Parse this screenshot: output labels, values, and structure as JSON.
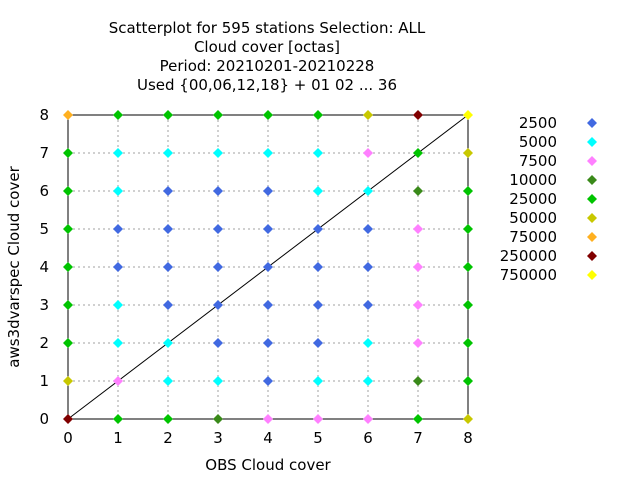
{
  "chart_data": {
    "type": "scatter",
    "title_lines": [
      "Scatterplot for  595 stations Selection: ALL",
      "Cloud cover [octas]",
      "Period: 20210201-20210228",
      "Used {00,06,12,18} + 01 02 ... 36"
    ],
    "xlabel": "OBS Cloud cover",
    "ylabel": "aws3dvarspec Cloud cover",
    "xlim": [
      0,
      8
    ],
    "ylim": [
      0,
      8
    ],
    "xticks": [
      "0",
      "1",
      "2",
      "3",
      "4",
      "5",
      "6",
      "7",
      "8"
    ],
    "yticks": [
      "0",
      "1",
      "2",
      "3",
      "4",
      "5",
      "6",
      "7",
      "8"
    ],
    "grid": true,
    "diagonal_line": true,
    "legend_placement": "right",
    "legend": [
      {
        "label": "2500",
        "color": "#4169e1"
      },
      {
        "label": "5000",
        "color": "#00ffff"
      },
      {
        "label": "7500",
        "color": "#ff80ff"
      },
      {
        "label": "10000",
        "color": "#3a8a1a"
      },
      {
        "label": "25000",
        "color": "#00c400"
      },
      {
        "label": "50000",
        "color": "#c8c800"
      },
      {
        "label": "75000",
        "color": "#ffb020"
      },
      {
        "label": "250000",
        "color": "#800000"
      },
      {
        "label": "750000",
        "color": "#ffff00"
      }
    ],
    "points": [
      [
        0,
        8,
        6
      ],
      [
        1,
        8,
        4
      ],
      [
        2,
        8,
        4
      ],
      [
        3,
        8,
        4
      ],
      [
        4,
        8,
        4
      ],
      [
        5,
        8,
        4
      ],
      [
        6,
        8,
        5
      ],
      [
        7,
        8,
        7
      ],
      [
        8,
        8,
        8
      ],
      [
        0,
        7,
        4
      ],
      [
        1,
        7,
        1
      ],
      [
        2,
        7,
        1
      ],
      [
        3,
        7,
        1
      ],
      [
        4,
        7,
        1
      ],
      [
        5,
        7,
        1
      ],
      [
        6,
        7,
        2
      ],
      [
        7,
        7,
        4
      ],
      [
        8,
        7,
        5
      ],
      [
        0,
        6,
        4
      ],
      [
        1,
        6,
        1
      ],
      [
        2,
        6,
        0
      ],
      [
        3,
        6,
        0
      ],
      [
        4,
        6,
        0
      ],
      [
        5,
        6,
        1
      ],
      [
        6,
        6,
        1
      ],
      [
        7,
        6,
        3
      ],
      [
        8,
        6,
        4
      ],
      [
        0,
        5,
        4
      ],
      [
        1,
        5,
        0
      ],
      [
        2,
        5,
        0
      ],
      [
        3,
        5,
        0
      ],
      [
        4,
        5,
        0
      ],
      [
        5,
        5,
        0
      ],
      [
        6,
        5,
        0
      ],
      [
        7,
        5,
        2
      ],
      [
        8,
        5,
        4
      ],
      [
        0,
        4,
        4
      ],
      [
        1,
        4,
        0
      ],
      [
        2,
        4,
        0
      ],
      [
        3,
        4,
        0
      ],
      [
        4,
        4,
        0
      ],
      [
        5,
        4,
        0
      ],
      [
        6,
        4,
        0
      ],
      [
        7,
        4,
        2
      ],
      [
        8,
        4,
        4
      ],
      [
        0,
        3,
        4
      ],
      [
        1,
        3,
        1
      ],
      [
        2,
        3,
        0
      ],
      [
        3,
        3,
        0
      ],
      [
        4,
        3,
        0
      ],
      [
        5,
        3,
        0
      ],
      [
        6,
        3,
        0
      ],
      [
        7,
        3,
        2
      ],
      [
        8,
        3,
        4
      ],
      [
        0,
        2,
        4
      ],
      [
        1,
        2,
        1
      ],
      [
        2,
        2,
        1
      ],
      [
        3,
        2,
        0
      ],
      [
        4,
        2,
        0
      ],
      [
        5,
        2,
        0
      ],
      [
        6,
        2,
        1
      ],
      [
        7,
        2,
        2
      ],
      [
        8,
        2,
        4
      ],
      [
        0,
        1,
        5
      ],
      [
        1,
        1,
        2
      ],
      [
        2,
        1,
        1
      ],
      [
        3,
        1,
        1
      ],
      [
        4,
        1,
        0
      ],
      [
        5,
        1,
        1
      ],
      [
        6,
        1,
        1
      ],
      [
        7,
        1,
        3
      ],
      [
        8,
        1,
        4
      ],
      [
        0,
        0,
        7
      ],
      [
        1,
        0,
        4
      ],
      [
        2,
        0,
        4
      ],
      [
        3,
        0,
        3
      ],
      [
        4,
        0,
        2
      ],
      [
        5,
        0,
        2
      ],
      [
        6,
        0,
        2
      ],
      [
        7,
        0,
        4
      ],
      [
        8,
        0,
        5
      ]
    ]
  }
}
